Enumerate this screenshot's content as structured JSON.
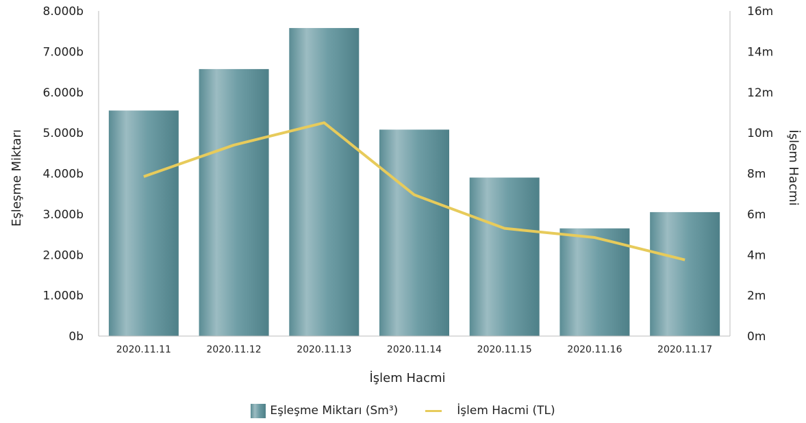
{
  "colors": {
    "bar_dark": "#4e8088",
    "bar_light": "#9cbcc2",
    "line": "#e7cb5b",
    "axis": "#bbbbbb"
  },
  "chart_data": {
    "type": "bar",
    "categories": [
      "2020.11.11",
      "2020.11.12",
      "2020.11.13",
      "2020.11.14",
      "2020.11.15",
      "2020.11.16",
      "2020.11.17"
    ],
    "series": [
      {
        "name": "Eşleşme Miktarı (Sm³)",
        "type": "bar",
        "axis": "left",
        "values": [
          5550,
          6570,
          7580,
          5080,
          3900,
          2650,
          3050
        ]
      },
      {
        "name": "İşlem Hacmi (TL)",
        "type": "line",
        "axis": "right",
        "values": [
          7.85,
          9.4,
          10.5,
          6.95,
          5.3,
          4.85,
          3.75
        ]
      }
    ],
    "xlabel": "İşlem Hacmi",
    "ylabel": "Eşleşme Miktarı",
    "y2label": "İşlem Hacmi",
    "ylim": [
      0,
      8000
    ],
    "y2lim": [
      0,
      16
    ],
    "yticks": [
      "0b",
      "1.000b",
      "2.000b",
      "3.000b",
      "4.000b",
      "5.000b",
      "6.000b",
      "7.000b",
      "8.000b"
    ],
    "y2ticks": [
      "0m",
      "2m",
      "4m",
      "6m",
      "8m",
      "10m",
      "12m",
      "14m",
      "16m"
    ],
    "grid": false,
    "legend_position": "bottom"
  }
}
